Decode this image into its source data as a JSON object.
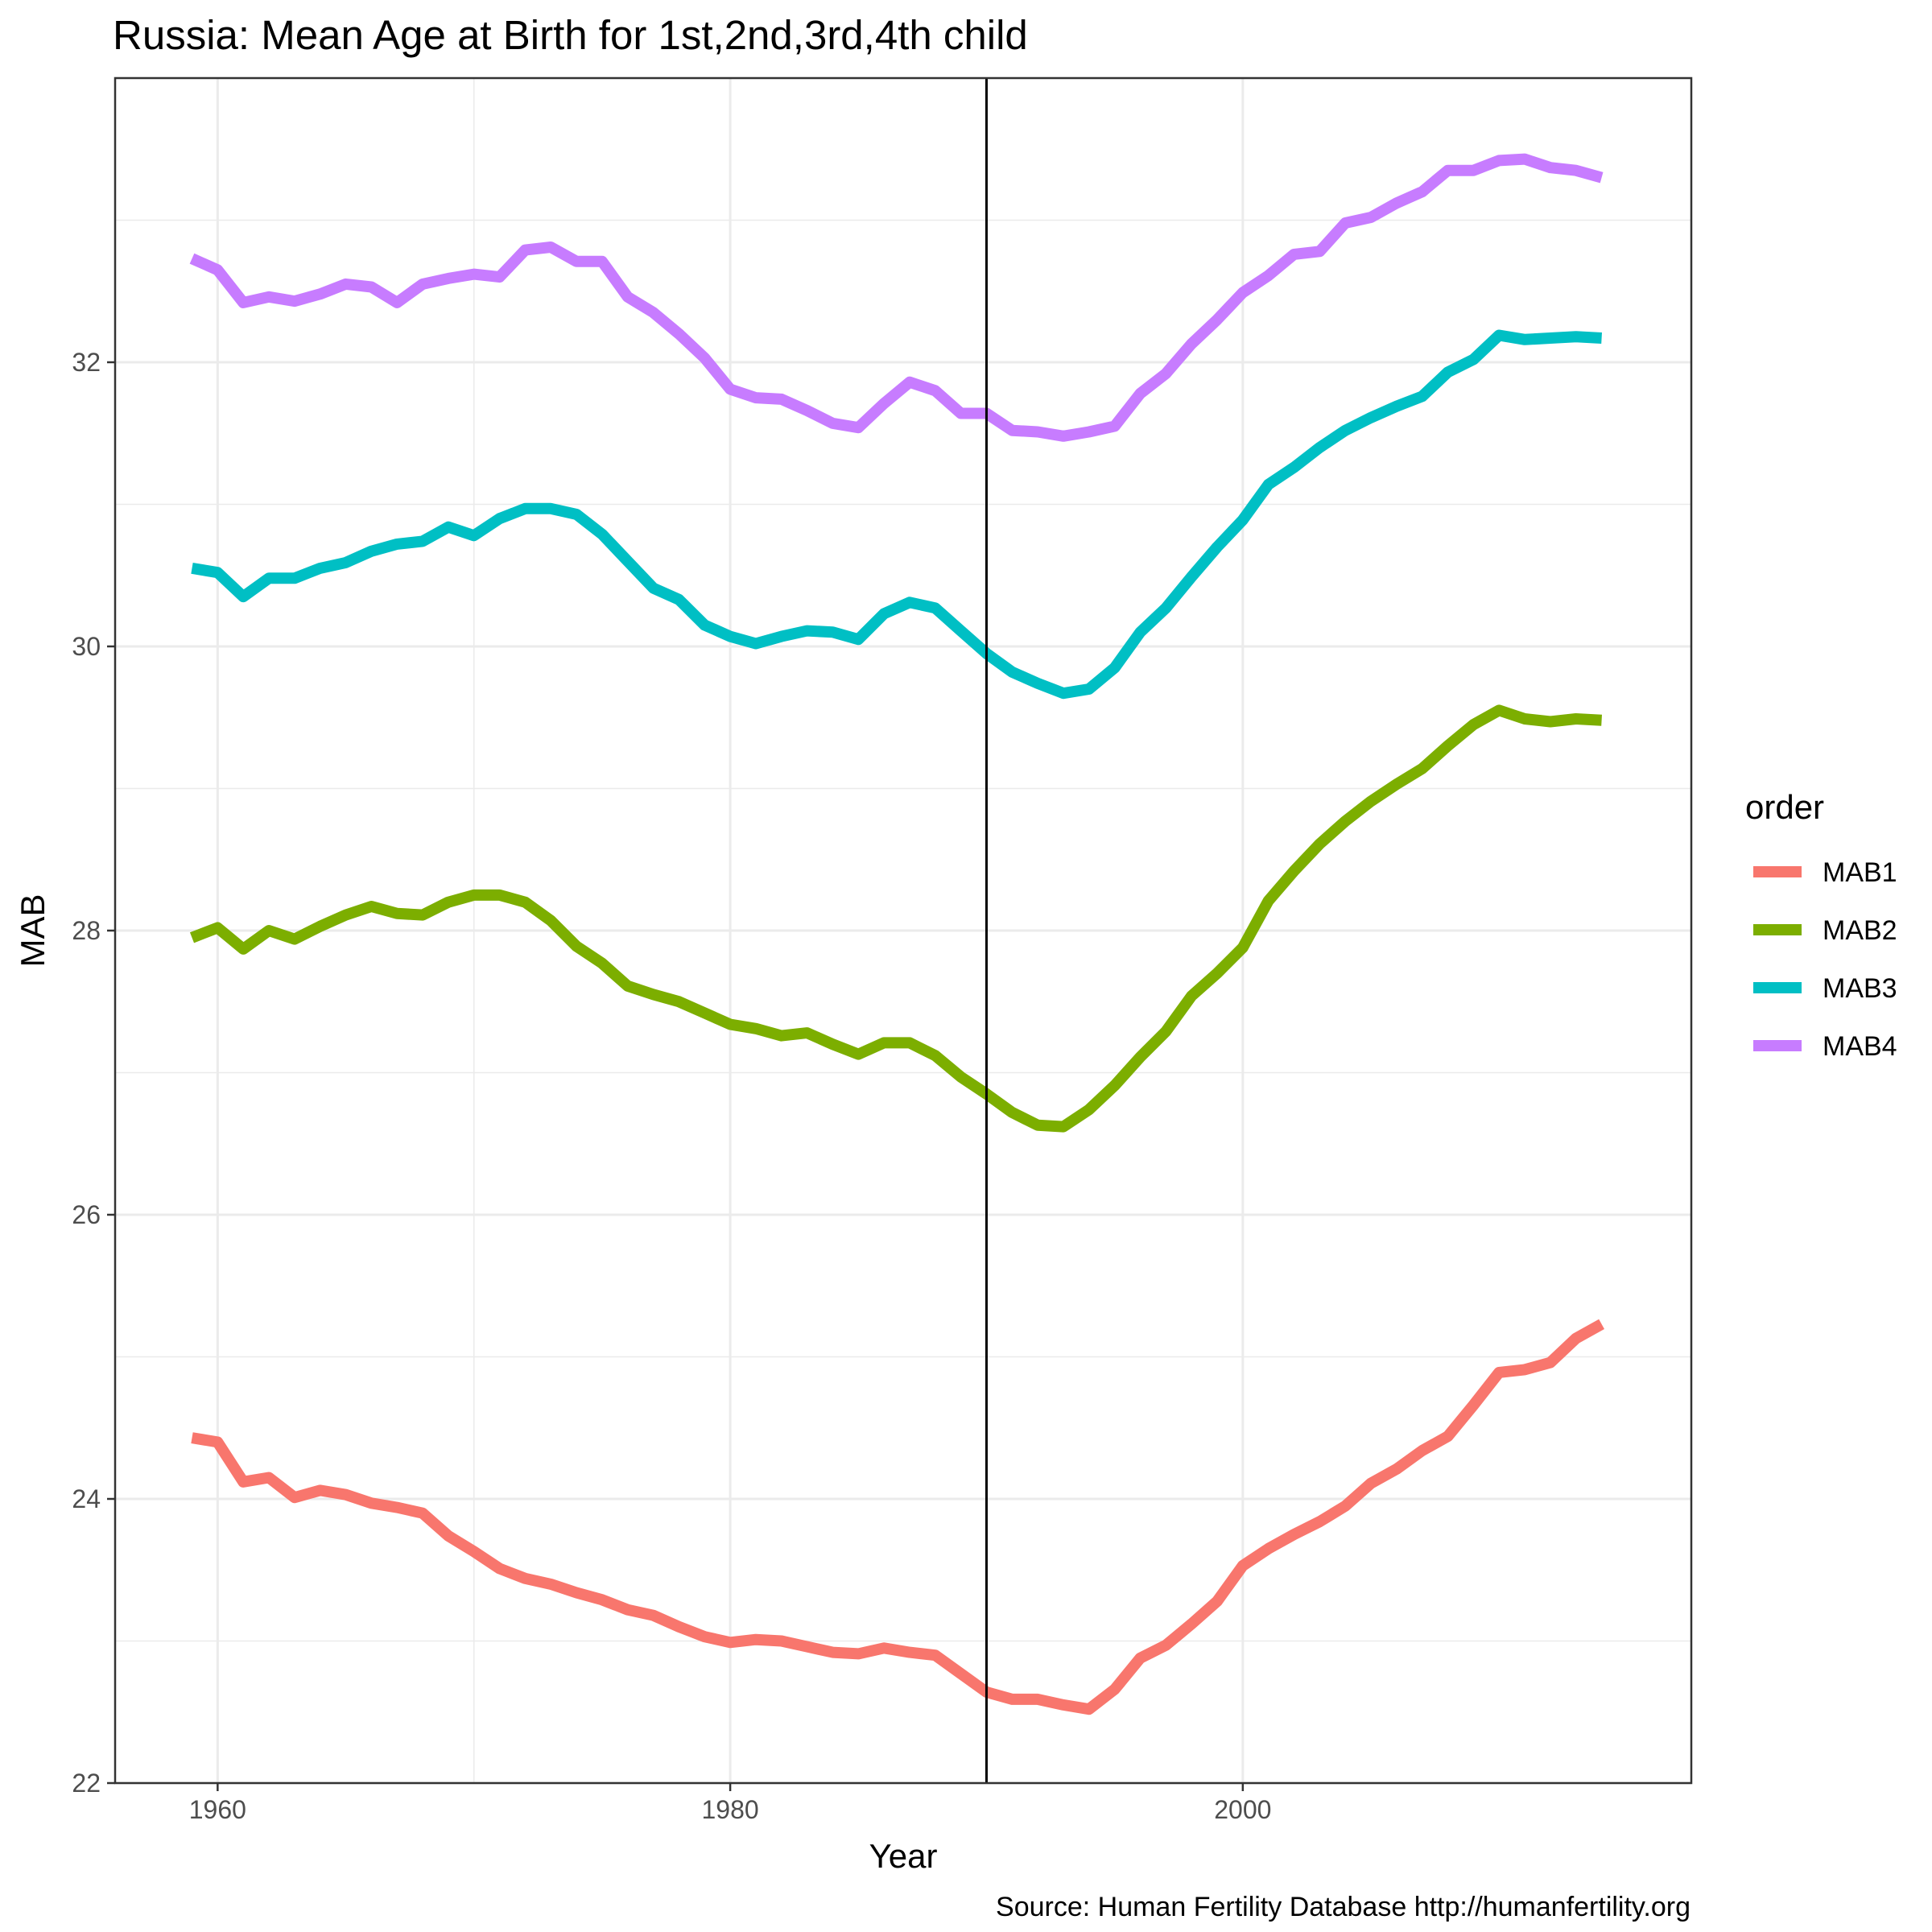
{
  "chart_data": {
    "type": "line",
    "title": "Russia: Mean Age at Birth for 1st,2nd,3rd,4th child",
    "xlabel": "Year",
    "ylabel": "MAB",
    "caption": "Source: Human Fertility Database http://humanfertility.org",
    "xlim": [
      1956,
      2017.5
    ],
    "ylim": [
      22,
      34
    ],
    "x_ticks": [
      1960,
      1980,
      2000
    ],
    "x_tick_labels": [
      "1960",
      "1980",
      "2000"
    ],
    "y_ticks": [
      22,
      24,
      26,
      28,
      30,
      32
    ],
    "y_tick_labels": [
      "22",
      "24",
      "26",
      "28",
      "30",
      "32"
    ],
    "grid": true,
    "reference_line": {
      "x": 1990,
      "color": "#000000"
    },
    "legend": {
      "title": "order",
      "position": "right"
    },
    "x": [
      1959,
      1960,
      1961,
      1962,
      1963,
      1964,
      1965,
      1966,
      1967,
      1968,
      1969,
      1970,
      1971,
      1972,
      1973,
      1974,
      1975,
      1976,
      1977,
      1978,
      1979,
      1980,
      1981,
      1982,
      1983,
      1984,
      1985,
      1986,
      1987,
      1988,
      1989,
      1990,
      1991,
      1992,
      1993,
      1994,
      1995,
      1996,
      1997,
      1998,
      1999,
      2000,
      2001,
      2002,
      2003,
      2004,
      2005,
      2006,
      2007,
      2008,
      2009,
      2010,
      2011,
      2012,
      2013,
      2014
    ],
    "series": [
      {
        "name": "MAB1",
        "color": "#F8766D",
        "values": [
          24.43,
          24.4,
          24.12,
          24.15,
          24.01,
          24.06,
          24.03,
          23.97,
          23.94,
          23.9,
          23.74,
          23.63,
          23.51,
          23.44,
          23.4,
          23.34,
          23.29,
          23.22,
          23.18,
          23.1,
          23.03,
          22.99,
          23.01,
          23.0,
          22.96,
          22.92,
          22.91,
          22.95,
          22.92,
          22.9,
          22.77,
          22.64,
          22.59,
          22.59,
          22.55,
          22.52,
          22.66,
          22.88,
          22.97,
          23.12,
          23.28,
          23.53,
          23.65,
          23.75,
          23.84,
          23.95,
          24.11,
          24.21,
          24.34,
          24.44,
          24.66,
          24.89,
          24.91,
          24.96,
          25.13,
          25.23
        ]
      },
      {
        "name": "MAB2",
        "color": "#7CAE00",
        "values": [
          27.95,
          28.02,
          27.87,
          28.0,
          27.94,
          28.03,
          28.11,
          28.17,
          28.12,
          28.11,
          28.2,
          28.25,
          28.25,
          28.2,
          28.07,
          27.89,
          27.77,
          27.61,
          27.55,
          27.5,
          27.42,
          27.34,
          27.31,
          27.26,
          27.28,
          27.2,
          27.13,
          27.21,
          27.21,
          27.12,
          26.97,
          26.85,
          26.72,
          26.63,
          26.62,
          26.74,
          26.91,
          27.11,
          27.29,
          27.54,
          27.7,
          27.88,
          28.21,
          28.42,
          28.61,
          28.77,
          28.91,
          29.03,
          29.14,
          29.3,
          29.45,
          29.55,
          29.49,
          29.47,
          29.49,
          29.48
        ]
      },
      {
        "name": "MAB3",
        "color": "#00BFC4",
        "values": [
          30.55,
          30.52,
          30.35,
          30.48,
          30.48,
          30.55,
          30.59,
          30.67,
          30.72,
          30.74,
          30.84,
          30.78,
          30.9,
          30.97,
          30.97,
          30.93,
          30.79,
          30.6,
          30.41,
          30.33,
          30.15,
          30.07,
          30.02,
          30.07,
          30.11,
          30.1,
          30.05,
          30.23,
          30.31,
          30.27,
          30.11,
          29.95,
          29.82,
          29.74,
          29.67,
          29.7,
          29.85,
          30.1,
          30.27,
          30.49,
          30.7,
          30.89,
          31.14,
          31.26,
          31.4,
          31.52,
          31.61,
          31.69,
          31.76,
          31.93,
          32.02,
          32.19,
          32.16,
          32.17,
          32.18,
          32.17
        ]
      },
      {
        "name": "MAB4",
        "color": "#C77CFF",
        "values": [
          32.73,
          32.65,
          32.42,
          32.46,
          32.43,
          32.48,
          32.55,
          32.53,
          32.42,
          32.55,
          32.59,
          32.62,
          32.6,
          32.79,
          32.81,
          32.71,
          32.71,
          32.46,
          32.35,
          32.2,
          32.03,
          31.81,
          31.75,
          31.74,
          31.66,
          31.57,
          31.54,
          31.71,
          31.86,
          31.8,
          31.64,
          31.64,
          31.52,
          31.51,
          31.48,
          31.51,
          31.55,
          31.78,
          31.92,
          32.13,
          32.3,
          32.49,
          32.61,
          32.76,
          32.78,
          32.98,
          33.02,
          33.12,
          33.2,
          33.35,
          33.35,
          33.42,
          33.43,
          33.37,
          33.35,
          33.3
        ]
      }
    ]
  }
}
